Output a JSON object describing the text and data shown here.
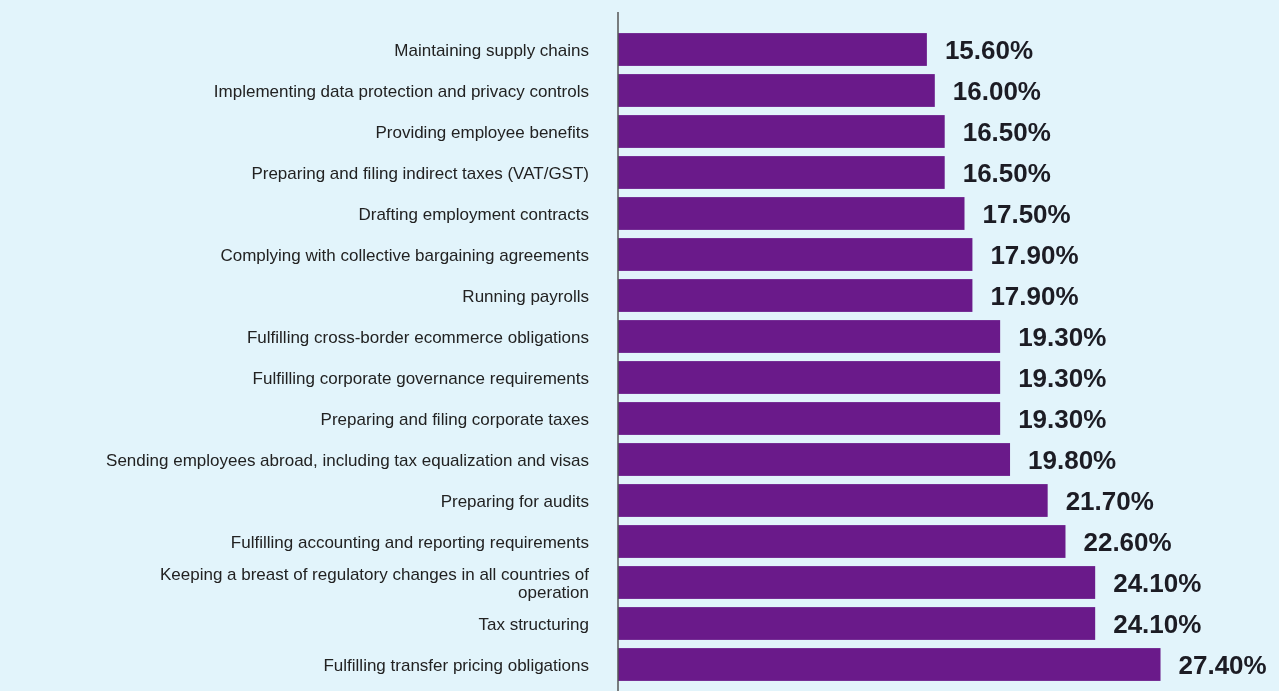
{
  "chart_data": {
    "type": "bar",
    "orientation": "horizontal",
    "color": "#6a1a8a",
    "categories": [
      "Maintaining supply chains",
      "Implementing data protection and privacy controls",
      "Providing employee benefits",
      "Preparing and filing indirect taxes (VAT/GST)",
      "Drafting employment contracts",
      "Complying with collective bargaining agreements",
      "Running payrolls",
      "Fulfilling cross-border ecommerce obligations",
      "Fulfilling corporate governance requirements",
      "Preparing and filing corporate taxes",
      "Sending employees abroad, including tax equalization and visas",
      "Preparing for audits",
      "Fulfilling accounting and reporting requirements",
      "Keeping a breast of regulatory changes in all countries of operation",
      "Tax structuring",
      "Fulfilling transfer pricing obligations"
    ],
    "values": [
      15.6,
      16.0,
      16.5,
      16.5,
      17.5,
      17.9,
      17.9,
      19.3,
      19.3,
      19.3,
      19.8,
      21.7,
      22.6,
      24.1,
      24.1,
      27.4
    ],
    "value_labels": [
      "15.60%",
      "16.00%",
      "16.50%",
      "16.50%",
      "17.50%",
      "17.90%",
      "17.90%",
      "19.30%",
      "19.30%",
      "19.30%",
      "19.80%",
      "21.70%",
      "22.60%",
      "24.10%",
      "24.10%",
      "27.40%"
    ]
  }
}
